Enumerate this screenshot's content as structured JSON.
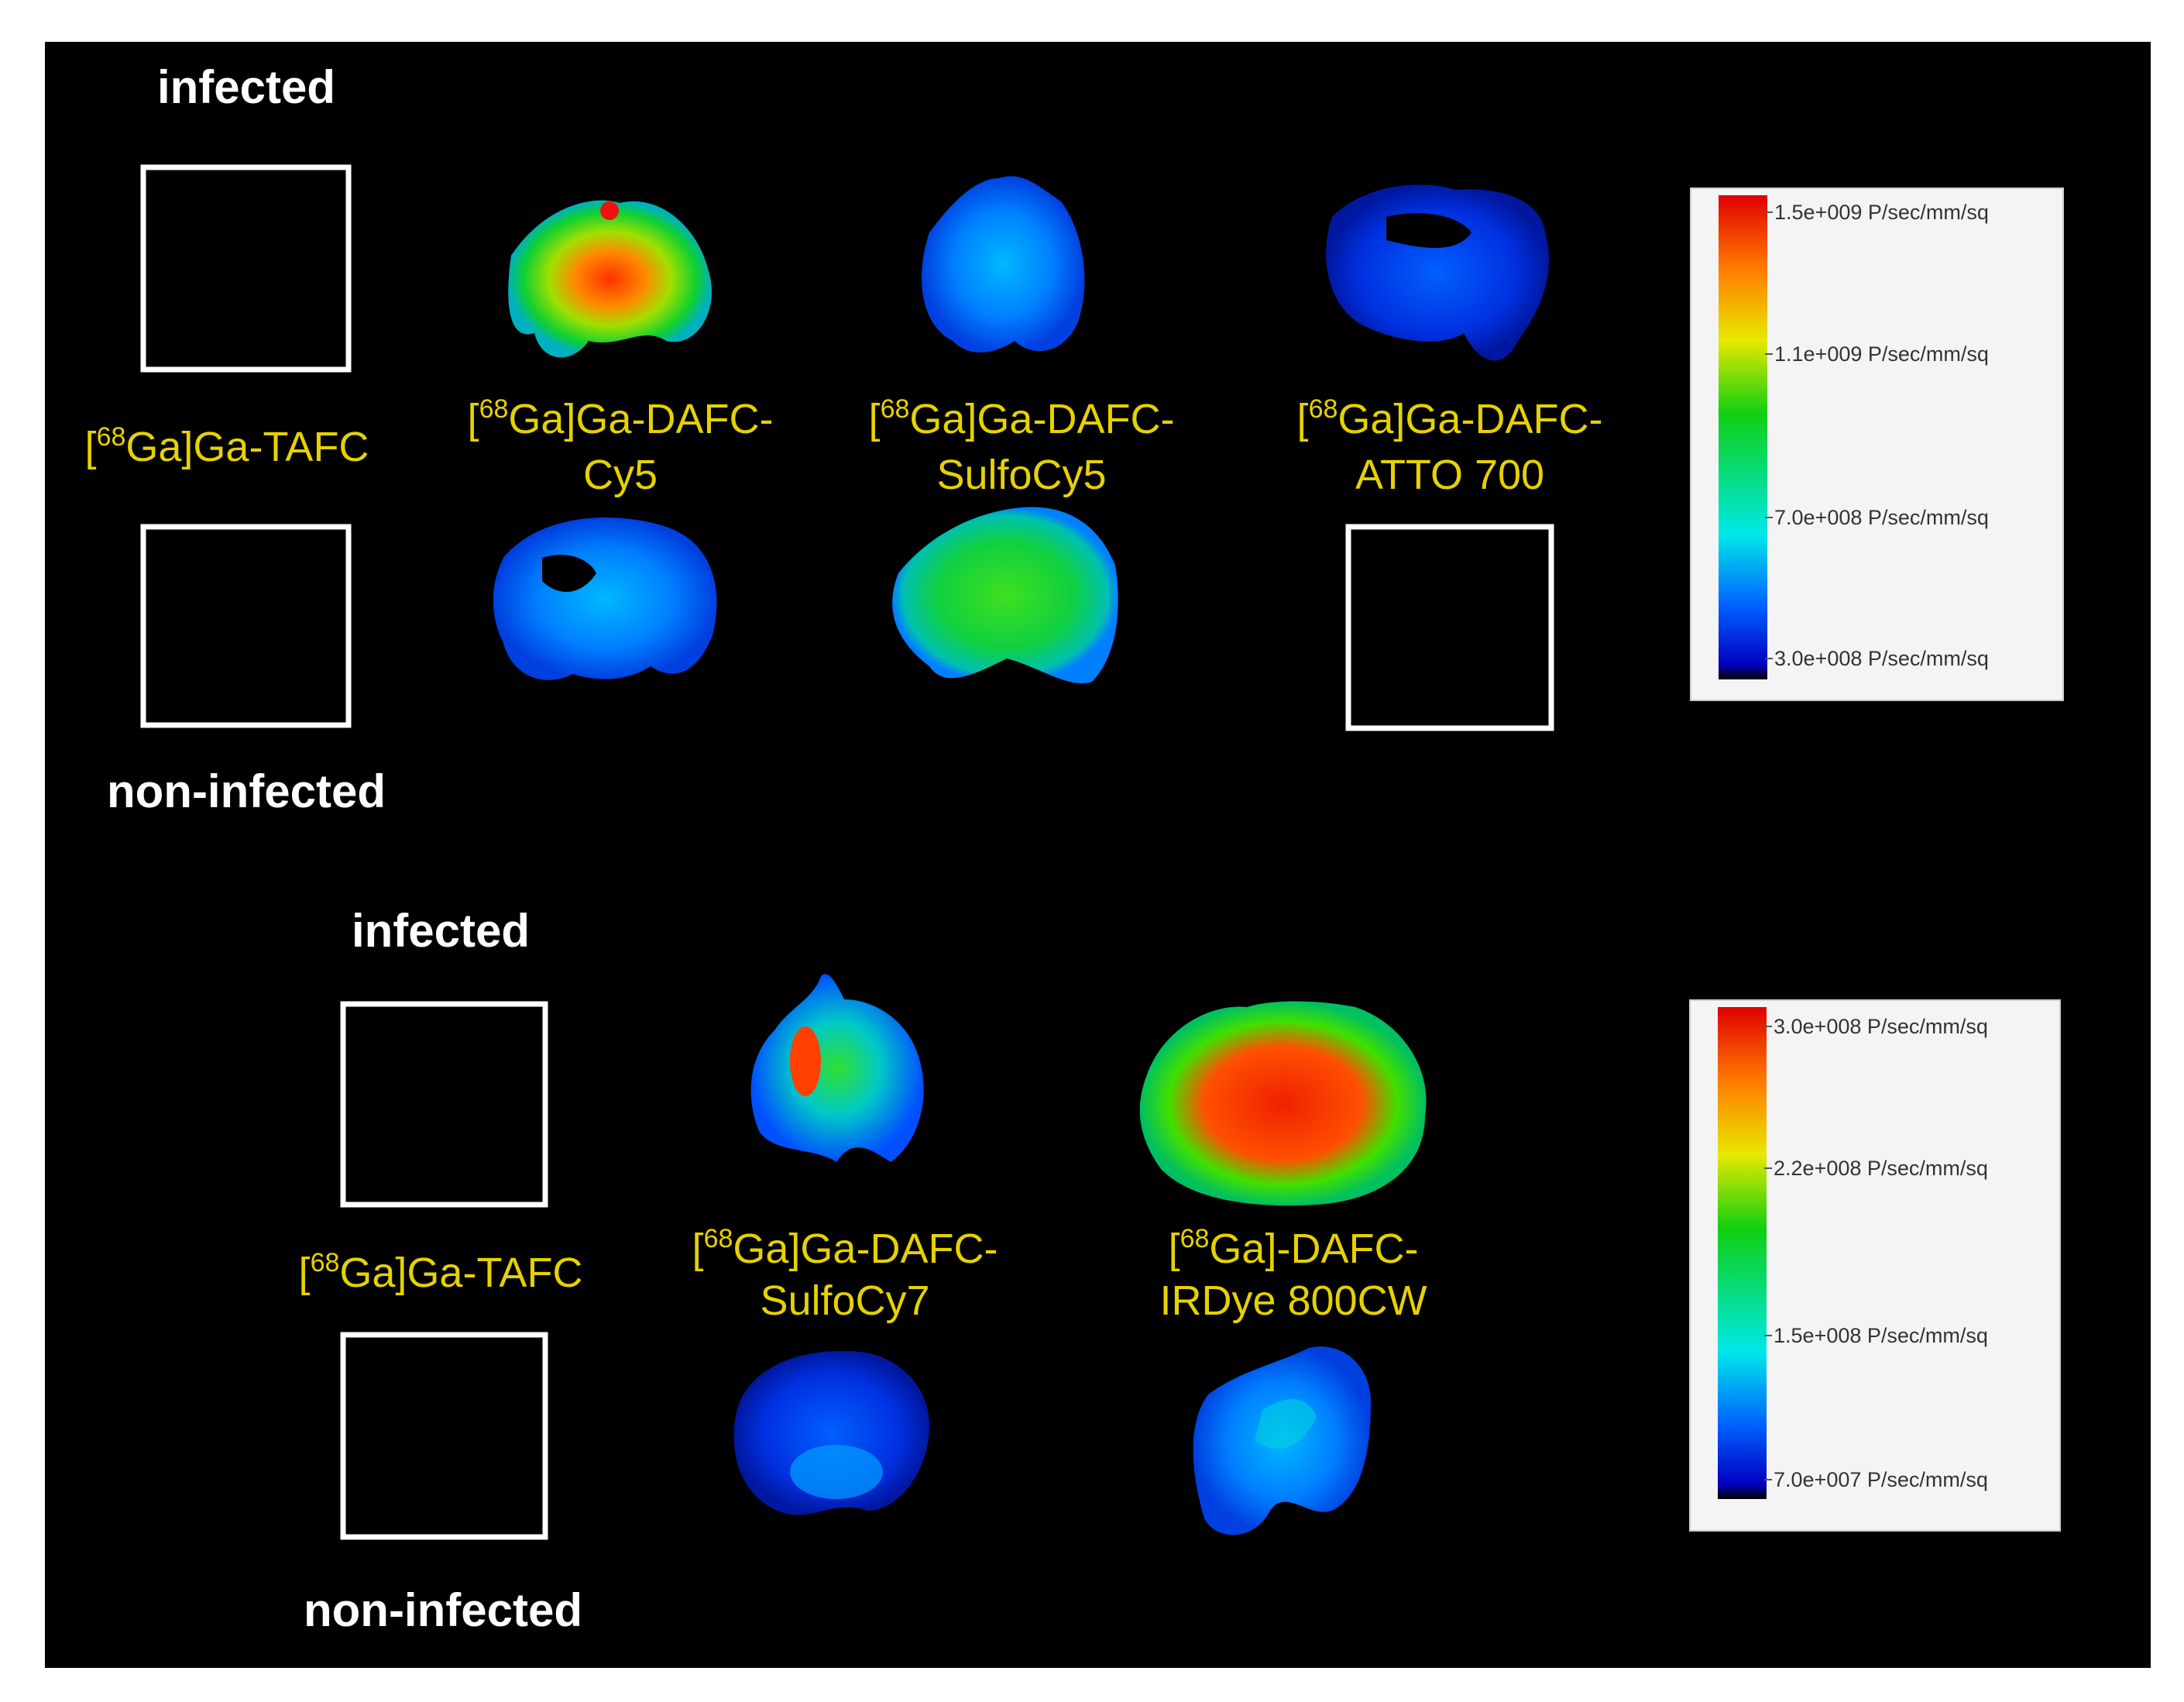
{
  "panels": [
    {
      "top_label": "infected",
      "bottom_label": "non-infected",
      "probes": [
        {
          "lines": [
            [
              "[",
              "68",
              "Ga]Ga-TAFC"
            ]
          ]
        },
        {
          "lines": [
            [
              "[",
              "68",
              "Ga]Ga-DAFC-"
            ],
            [
              "Cy5"
            ]
          ]
        },
        {
          "lines": [
            [
              "[",
              "68",
              "Ga]Ga-DAFC-"
            ],
            [
              "SulfoCy5"
            ]
          ]
        },
        {
          "lines": [
            [
              "[",
              "68",
              "Ga]Ga-DAFC-"
            ],
            [
              "ATTO 700"
            ]
          ]
        }
      ],
      "scale": [
        "1.5e+009 P/sec/mm/sq",
        "1.1e+009 P/sec/mm/sq",
        "7.0e+008 P/sec/mm/sq",
        "3.0e+008 P/sec/mm/sq"
      ]
    },
    {
      "top_label": "infected",
      "bottom_label": "non-infected",
      "probes": [
        {
          "lines": [
            [
              "[",
              "68",
              "Ga]Ga-TAFC"
            ]
          ]
        },
        {
          "lines": [
            [
              "[",
              "68",
              "Ga]Ga-DAFC-"
            ],
            [
              "SulfoCy7"
            ]
          ]
        },
        {
          "lines": [
            [
              "[",
              "68",
              "Ga]-DAFC-"
            ],
            [
              "IRDye 800CW"
            ]
          ]
        }
      ],
      "scale": [
        "3.0e+008 P/sec/mm/sq",
        "2.2e+008 P/sec/mm/sq",
        "1.5e+008 P/sec/mm/sq",
        "7.0e+007 P/sec/mm/sq"
      ]
    }
  ]
}
